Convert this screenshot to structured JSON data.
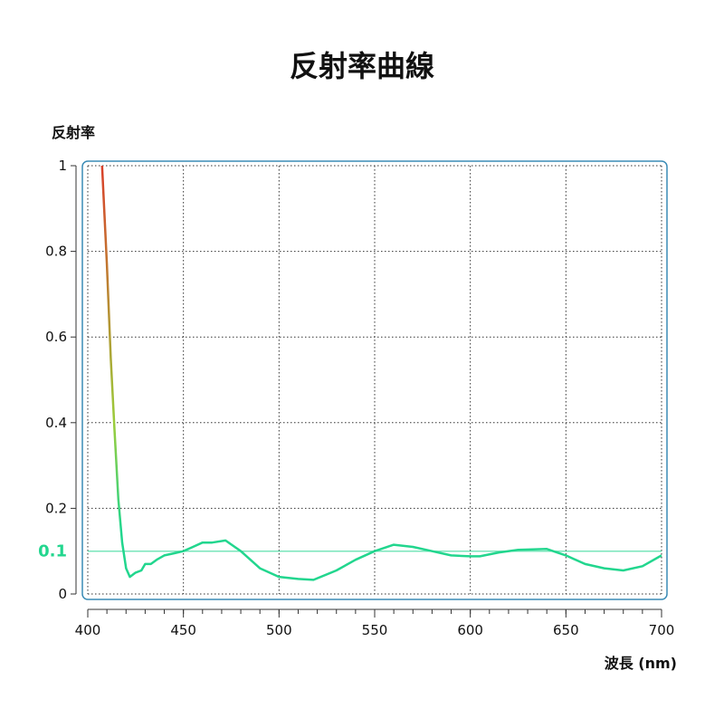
{
  "chart_data": {
    "type": "line",
    "title": "反射率曲線",
    "y_label": "反射率",
    "x_label": "波長 (nm)",
    "x": [
      407.5,
      410,
      412,
      414,
      416,
      418,
      420,
      422,
      425,
      428,
      430,
      433,
      436,
      440,
      445,
      450,
      455,
      460,
      465,
      472,
      480,
      490,
      500,
      510,
      518,
      530,
      540,
      550,
      560,
      570,
      580,
      590,
      600,
      605,
      615,
      625,
      640,
      650,
      660,
      670,
      680,
      690,
      700
    ],
    "series": [
      {
        "values": [
          1.0,
          0.77,
          0.55,
          0.38,
          0.22,
          0.12,
          0.06,
          0.04,
          0.05,
          0.055,
          0.07,
          0.07,
          0.08,
          0.09,
          0.095,
          0.1,
          0.11,
          0.12,
          0.12,
          0.125,
          0.1,
          0.06,
          0.04,
          0.035,
          0.033,
          0.055,
          0.08,
          0.1,
          0.115,
          0.11,
          0.1,
          0.09,
          0.088,
          0.088,
          0.097,
          0.103,
          0.105,
          0.09,
          0.07,
          0.06,
          0.055,
          0.065,
          0.09
        ],
        "gradient": [
          "#d9402a",
          "#9bcc3a",
          "#22d68e"
        ]
      }
    ],
    "reference_line": 0.1,
    "reference_color": "#22d68e",
    "xlim": [
      400,
      700
    ],
    "xticks": [
      400,
      450,
      500,
      550,
      600,
      650,
      700
    ],
    "ylim": [
      0,
      1
    ],
    "yticks": [
      0,
      0.2,
      0.4,
      0.6,
      0.8,
      1
    ],
    "grid": true
  }
}
